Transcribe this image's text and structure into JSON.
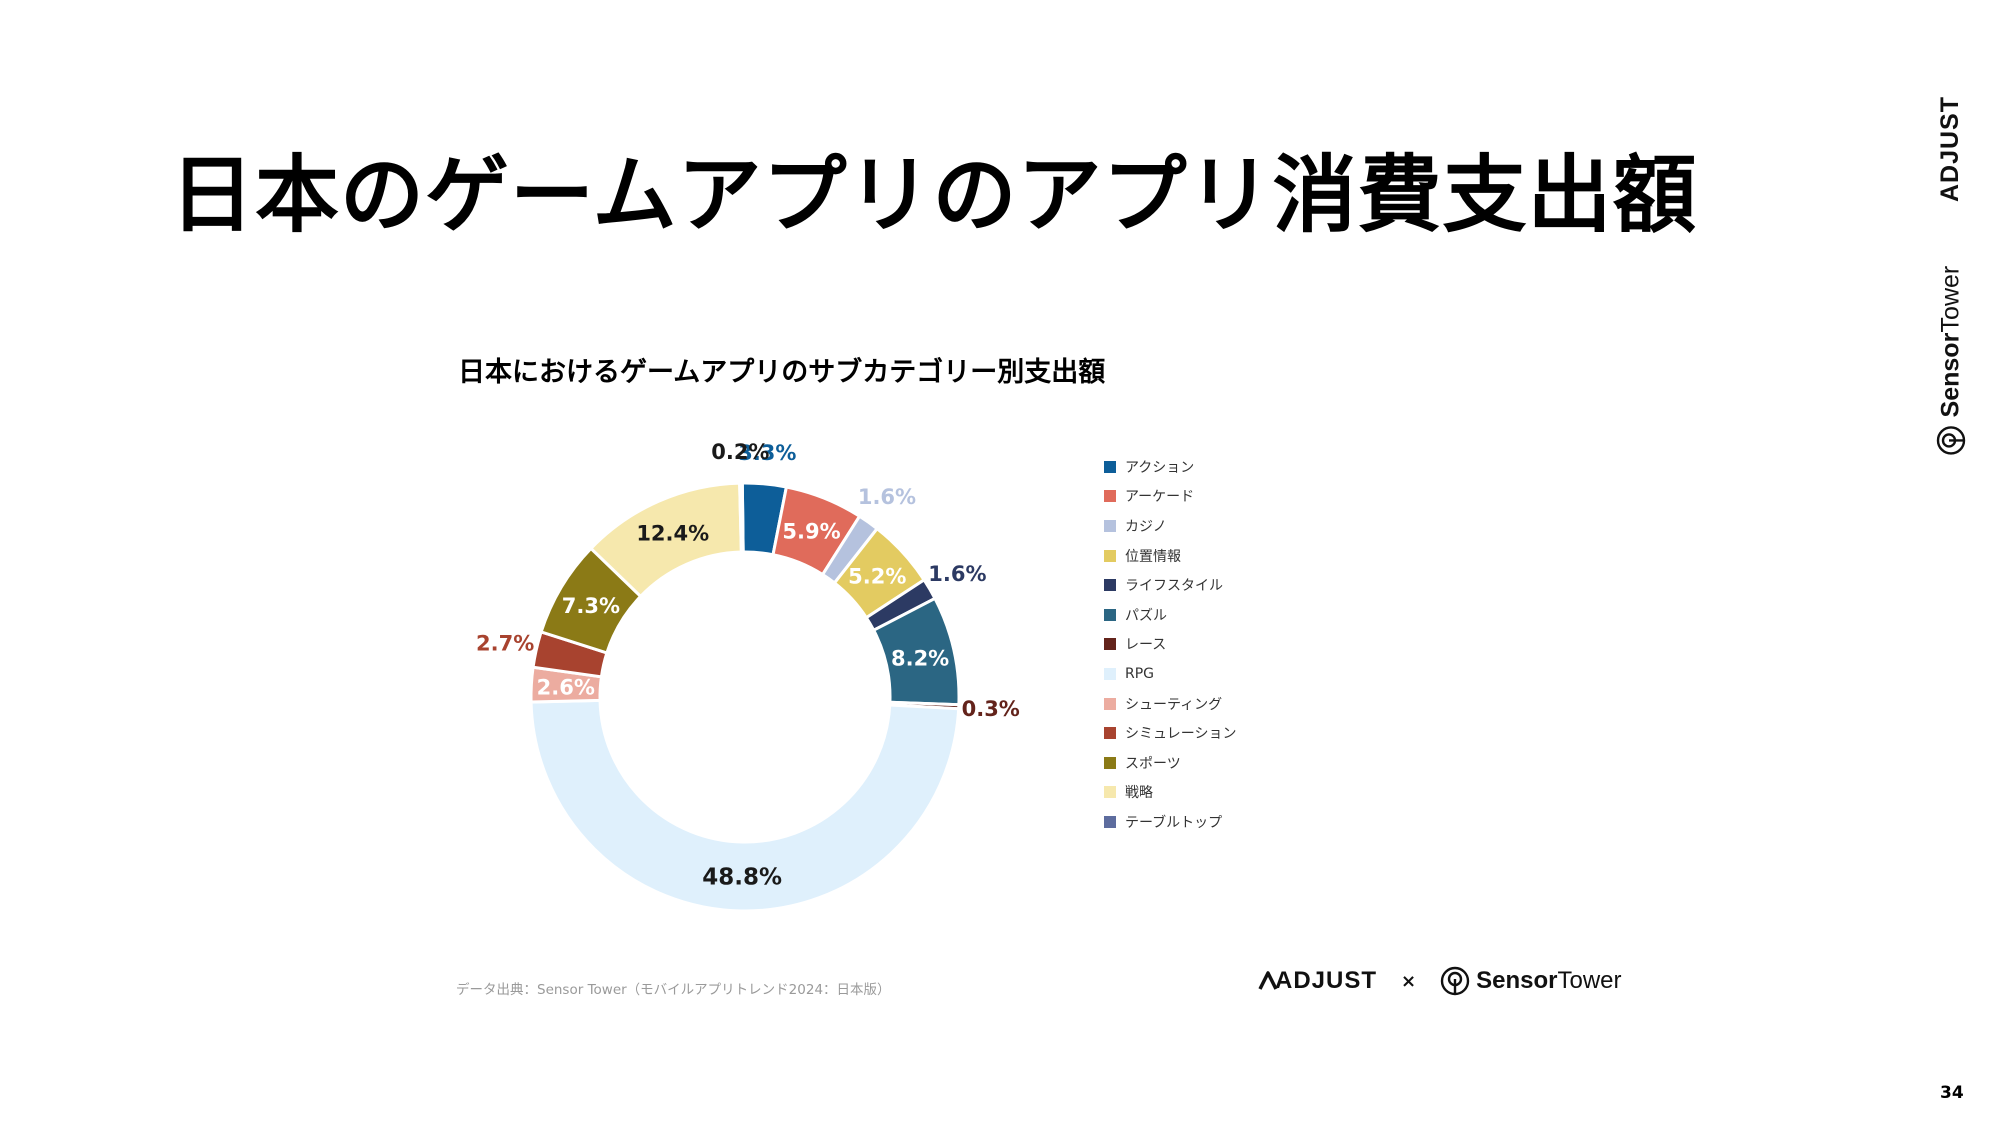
{
  "page": {
    "title": "日本のゲームアプリのアプリ消費支出額",
    "number": "34"
  },
  "chart_data": {
    "type": "pie",
    "title": "日本におけるゲームアプリのサブカテゴリー別支出額",
    "unit": "%",
    "donut": true,
    "legend_position": "right",
    "categories": [
      "アクション",
      "アーケード",
      "カジノ",
      "位置情報",
      "ライフスタイル",
      "パズル",
      "レース",
      "RPG",
      "シューティング",
      "シミュレーション",
      "スポーツ",
      "戦略",
      "テーブルトップ"
    ],
    "values": [
      3.3,
      5.9,
      1.6,
      5.2,
      1.6,
      8.2,
      0.3,
      48.8,
      2.6,
      2.7,
      7.3,
      12.4,
      0.2
    ],
    "labels": [
      "3.3%",
      "5.9%",
      "1.6%",
      "5.2%",
      "1.6%",
      "8.2%",
      "0.3%",
      "48.8%",
      "2.6%",
      "2.7%",
      "7.3%",
      "12.4%",
      "0.2%"
    ],
    "colors": [
      "#0d5e99",
      "#e06b5b",
      "#b5c2de",
      "#e3cb61",
      "#2c3a63",
      "#2b6683",
      "#63231b",
      "#dff0fc",
      "#ecaca0",
      "#a8432f",
      "#8b7a16",
      "#f6e8ad",
      "#5d6c9e"
    ],
    "label_colors": [
      "#0d5e99",
      "#ffffff",
      "#b5c2de",
      "#ffffff",
      "#2c3a63",
      "#ffffff",
      "#63231b",
      "#1a1a1a",
      "#ffffff",
      "#a8432f",
      "#ffffff",
      "#1a1a1a",
      "#1a1a1a"
    ]
  },
  "source": "データ出典：Sensor Tower（モバイルアプリトレンド2024：日本版）",
  "footer": {
    "adjust": "ADJUST",
    "times": "×",
    "sensor": "Sensor",
    "tower": "Tower"
  },
  "side_brand": {
    "adjust": "ADJUST",
    "sensor": "Sensor",
    "tower": "Tower"
  }
}
